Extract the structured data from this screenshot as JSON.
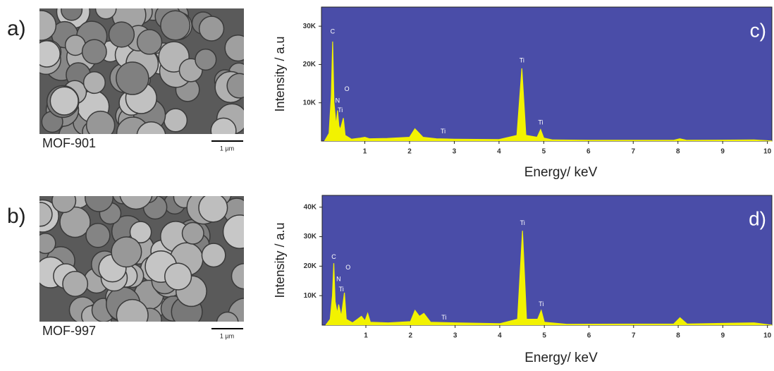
{
  "images": [
    {
      "label": "a)",
      "caption": "MOF-901",
      "scale_bar": "1 µm"
    },
    {
      "label": "b)",
      "caption": "MOF-997",
      "scale_bar": "1 µm"
    }
  ],
  "chart_data": [
    {
      "type": "area",
      "tag": "c)",
      "x_label": "Energy/ keV",
      "y_label": "Intensity / a.u",
      "color": "#f2f200",
      "background": "#4a4da8",
      "x": [
        0.1,
        0.2,
        0.25,
        0.28,
        0.31,
        0.36,
        0.39,
        0.42,
        0.45,
        0.52,
        0.56,
        0.7,
        0.9,
        1.0,
        1.1,
        1.5,
        2.0,
        2.12,
        2.3,
        2.6,
        3.0,
        4.0,
        4.4,
        4.51,
        4.6,
        4.85,
        4.93,
        5.0,
        5.2,
        6.0,
        7.9,
        8.04,
        8.2,
        9.7,
        10.0,
        10.1
      ],
      "values": [
        0,
        2000,
        12000,
        26000,
        10000,
        4000,
        8000,
        4000,
        3000,
        6000,
        1500,
        500,
        800,
        1000,
        600,
        700,
        1000,
        3200,
        1000,
        600,
        500,
        400,
        1500,
        19000,
        1500,
        1000,
        3000,
        800,
        300,
        200,
        200,
        600,
        200,
        300,
        100,
        0
      ],
      "annotations": [
        {
          "text": "C",
          "x": 0.28,
          "y": 28500
        },
        {
          "text": "N",
          "x": 0.39,
          "y": 10500
        },
        {
          "text": "O",
          "x": 0.6,
          "y": 13500
        },
        {
          "text": "Ti",
          "x": 0.45,
          "y": 8000
        },
        {
          "text": "Ti",
          "x": 2.75,
          "y": 2500
        },
        {
          "text": "Ti",
          "x": 4.51,
          "y": 21000
        },
        {
          "text": "Ti",
          "x": 4.93,
          "y": 4800
        }
      ],
      "xlim": [
        0.03,
        10.1
      ],
      "ylim": [
        0,
        35000
      ],
      "xticks": [
        1,
        2,
        3,
        4,
        5,
        6,
        7,
        8,
        9,
        10
      ],
      "yticks": [
        {
          "value": 10000,
          "label": "10K"
        },
        {
          "value": 20000,
          "label": "20K"
        },
        {
          "value": 30000,
          "label": "30K"
        }
      ]
    },
    {
      "type": "area",
      "tag": "d)",
      "x_label": "Energy/ keV",
      "y_label": "Intensity / a.u",
      "color": "#f2f200",
      "background": "#4a4da8",
      "x": [
        0.1,
        0.2,
        0.25,
        0.28,
        0.31,
        0.36,
        0.39,
        0.45,
        0.52,
        0.56,
        0.7,
        0.9,
        0.98,
        1.04,
        1.1,
        1.5,
        2.0,
        2.1,
        2.2,
        2.3,
        2.45,
        3.0,
        4.0,
        4.4,
        4.51,
        4.6,
        4.85,
        4.93,
        5.0,
        5.5,
        7.9,
        8.04,
        8.2,
        9.7,
        10.0,
        10.1
      ],
      "values": [
        0,
        2000,
        10000,
        21000,
        8000,
        4000,
        7000,
        3000,
        11000,
        2000,
        800,
        3000,
        1500,
        4000,
        1000,
        800,
        1200,
        5000,
        3000,
        4000,
        1000,
        800,
        500,
        2000,
        32000,
        2000,
        2000,
        5000,
        1000,
        300,
        400,
        2500,
        400,
        800,
        200,
        0
      ],
      "annotations": [
        {
          "text": "C",
          "x": 0.28,
          "y": 23000
        },
        {
          "text": "N",
          "x": 0.39,
          "y": 15500
        },
        {
          "text": "O",
          "x": 0.6,
          "y": 19500
        },
        {
          "text": "Ti",
          "x": 0.45,
          "y": 12000
        },
        {
          "text": "Ti",
          "x": 2.75,
          "y": 2500
        },
        {
          "text": "Ti",
          "x": 4.51,
          "y": 34500
        },
        {
          "text": "Ti",
          "x": 4.93,
          "y": 7000
        }
      ],
      "xlim": [
        0.02,
        10.1
      ],
      "ylim": [
        0,
        44000
      ],
      "xticks": [
        1,
        2,
        3,
        4,
        5,
        6,
        7,
        8,
        9,
        10
      ],
      "yticks": [
        {
          "value": 10000,
          "label": "10K"
        },
        {
          "value": 20000,
          "label": "20K"
        },
        {
          "value": 30000,
          "label": "30K"
        },
        {
          "value": 40000,
          "label": "40K"
        }
      ]
    }
  ]
}
